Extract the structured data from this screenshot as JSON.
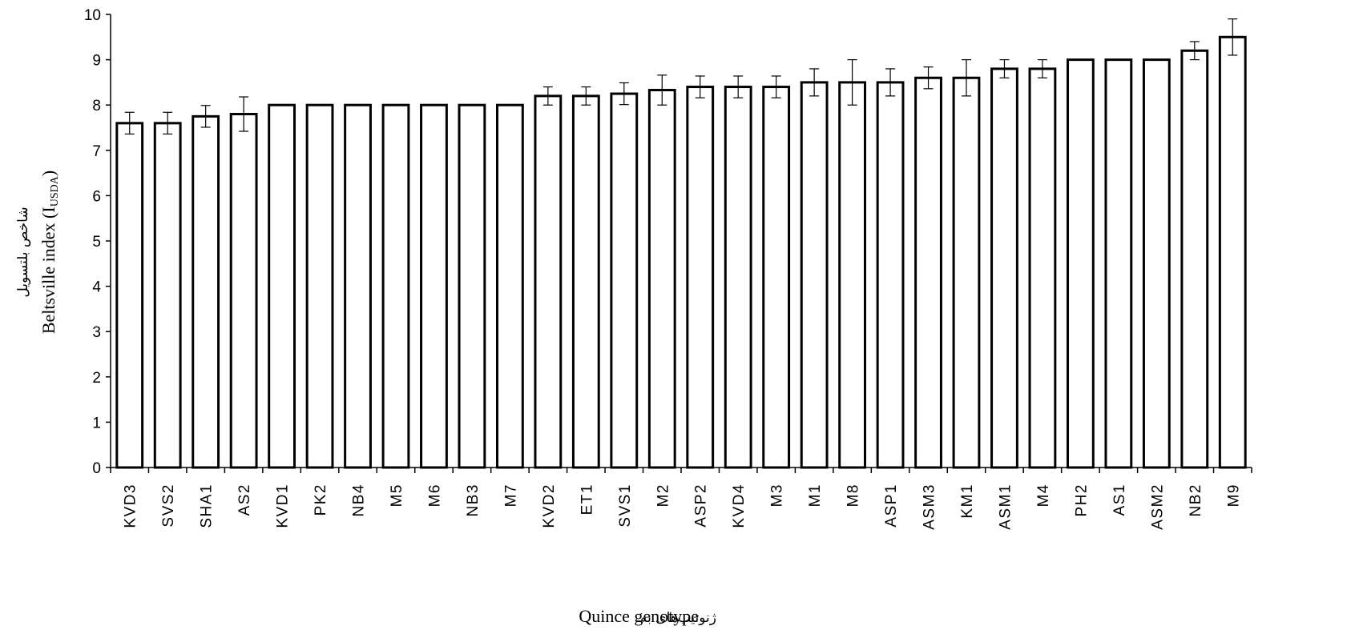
{
  "chart_data": {
    "type": "bar",
    "xlabel_fa": "ژنوتیپ‌های به",
    "xlabel": "Quince genotype",
    "ylabel_fa": "شاخص بلتسویل",
    "ylabel": "Beltsville index (I",
    "ylabel_sub": "USDA",
    "ylabel_end": ")",
    "ylim": [
      0,
      10
    ],
    "yticks": [
      "0",
      "1",
      "2",
      "3",
      "4",
      "5",
      "6",
      "7",
      "8",
      "9",
      "10"
    ],
    "grid": false,
    "bar_fill": "#ffffff",
    "bar_stroke": "#000000",
    "categories": [
      "KVD3",
      "SVS2",
      "SHA1",
      "AS2",
      "KVD1",
      "PK2",
      "NB4",
      "M5",
      "M6",
      "NB3",
      "M7",
      "KVD2",
      "ET1",
      "SVS1",
      "M2",
      "ASP2",
      "KVD4",
      "M3",
      "M1",
      "M8",
      "ASP1",
      "ASM3",
      "KM1",
      "ASM1",
      "M4",
      "PH2",
      "AS1",
      "ASM2",
      "NB2",
      "M9"
    ],
    "values": [
      7.6,
      7.6,
      7.75,
      7.8,
      8.0,
      8.0,
      8.0,
      8.0,
      8.0,
      8.0,
      8.0,
      8.2,
      8.2,
      8.25,
      8.33,
      8.4,
      8.4,
      8.4,
      8.5,
      8.5,
      8.5,
      8.6,
      8.6,
      8.8,
      8.8,
      9.0,
      9.0,
      9.0,
      9.2,
      9.5
    ],
    "errors": [
      0.24,
      0.24,
      0.24,
      0.38,
      0,
      0,
      0,
      0,
      0,
      0,
      0,
      0.2,
      0.2,
      0.24,
      0.33,
      0.24,
      0.24,
      0.24,
      0.3,
      0.5,
      0.3,
      0.24,
      0.4,
      0.2,
      0.2,
      0,
      0,
      0,
      0.2,
      0.4
    ]
  }
}
